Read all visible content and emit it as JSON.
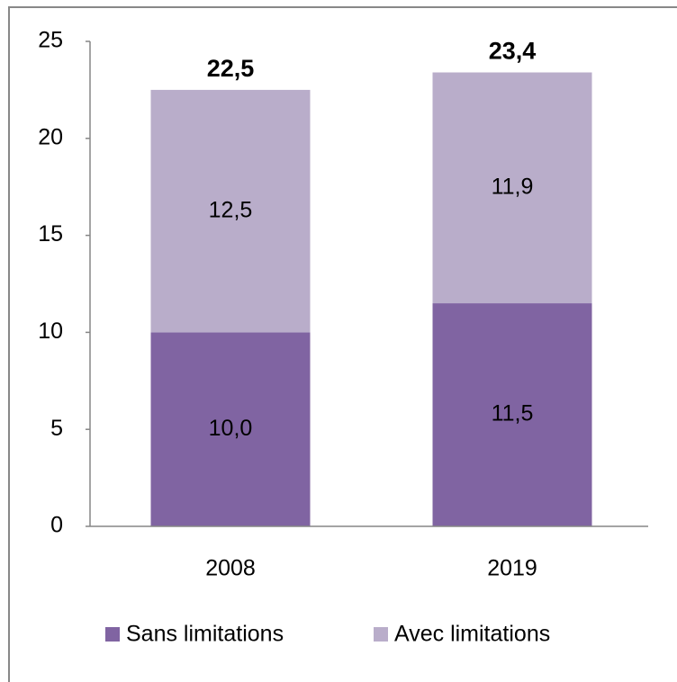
{
  "chart_data": {
    "type": "stacked_bar",
    "categories": [
      "2008",
      "2019"
    ],
    "series": [
      {
        "name": "Sans limitations",
        "color": "#8064a2",
        "values": [
          10.0,
          11.5
        ],
        "value_labels": [
          "10,0",
          "11,5"
        ]
      },
      {
        "name": "Avec limitations",
        "color": "#b9adca",
        "values": [
          12.5,
          11.9
        ],
        "value_labels": [
          "12,5",
          "11,9"
        ]
      }
    ],
    "totals": [
      22.5,
      23.4
    ],
    "total_labels": [
      "22,5",
      "23,4"
    ],
    "ylim": [
      0,
      25
    ],
    "yticks": [
      0,
      5,
      10,
      15,
      20,
      25
    ],
    "grid": false,
    "legend": "bottom"
  }
}
